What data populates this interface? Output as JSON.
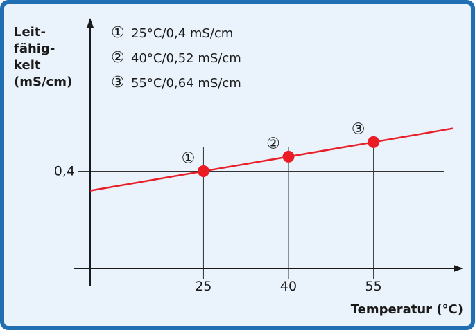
{
  "colors": {
    "frame": "#1f6fb2",
    "background": "#eaf3fb",
    "line": "#e8202a",
    "point": "#ea1c24",
    "axis": "#1a1a1a",
    "grid": "#333333"
  },
  "chart_data": {
    "type": "line",
    "ylabel_lines": [
      "Leit-",
      "fähig-",
      "keit",
      "(mS/cm)"
    ],
    "xlabel": "Temperatur (°C)",
    "x_ticks": [
      "25",
      "40",
      "55"
    ],
    "y_ticks": [
      "0,4"
    ],
    "legend": [
      {
        "marker": "①",
        "text": "25°C/0,4 mS/cm"
      },
      {
        "marker": "②",
        "text": "40°C/0,52 mS/cm"
      },
      {
        "marker": "③",
        "text": "55°C/0,64 mS/cm"
      }
    ],
    "legend_position": "top-left",
    "grid": "only at marked points",
    "x_data_range": [
      5,
      69
    ],
    "y_data_range": [
      -0.4,
      1.57
    ],
    "series": [
      {
        "points": [
          {
            "x": 25,
            "y": 0.4,
            "label": "①"
          },
          {
            "x": 40,
            "y": 0.52,
            "label": "②"
          },
          {
            "x": 55,
            "y": 0.64,
            "label": "③"
          }
        ],
        "line_x_extent": [
          5,
          69
        ]
      }
    ]
  }
}
